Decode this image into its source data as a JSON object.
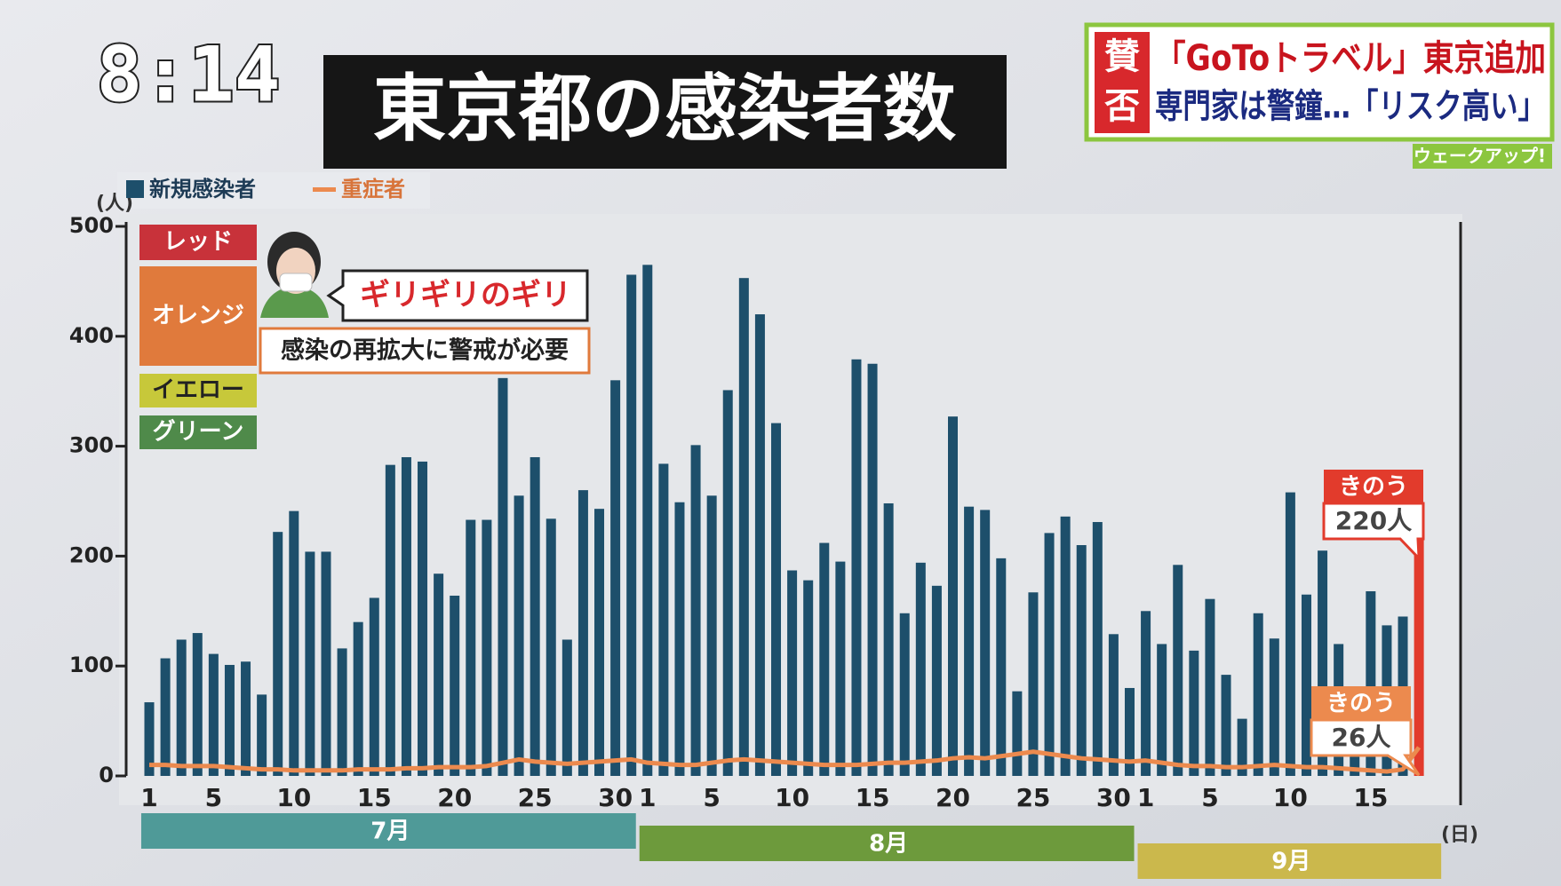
{
  "header": {
    "clock": "8:14",
    "title": "東京都の感染者数",
    "ticker": {
      "badge": [
        "賛",
        "否"
      ],
      "line1": "「GoToトラベル」東京追加",
      "line2": "専門家は警鐘…「リスク高い」",
      "program": "ウェークアップ!"
    }
  },
  "chart_data": {
    "type": "bar",
    "y_unit": "(人)",
    "x_unit": "(日)",
    "months": [
      "7月",
      "8月",
      "9月"
    ],
    "levels": [
      "レッド",
      "オレンジ",
      "イエロー",
      "グリーン"
    ],
    "quote": "ギリギリのギリ",
    "note": "感染の再拡大に警戒が必要",
    "categories": [
      "1",
      null,
      null,
      null,
      "5",
      null,
      null,
      null,
      null,
      "10",
      null,
      null,
      null,
      null,
      "15",
      null,
      null,
      null,
      null,
      "20",
      null,
      null,
      null,
      null,
      "25",
      null,
      null,
      null,
      null,
      "30",
      null,
      "1",
      null,
      null,
      null,
      "5",
      null,
      null,
      null,
      null,
      "10",
      null,
      null,
      null,
      null,
      "15",
      null,
      null,
      null,
      null,
      "20",
      null,
      null,
      null,
      null,
      "25",
      null,
      null,
      null,
      null,
      "30",
      null,
      "1",
      null,
      null,
      null,
      "5",
      null,
      null,
      null,
      null,
      "10",
      null,
      null,
      null,
      null,
      "15",
      null,
      null,
      null
    ],
    "series": [
      {
        "name": "新規感染者",
        "color": "#1d4f6b",
        "highlight_color": "#e23b2c",
        "callout": "きのう",
        "values": [
          67,
          107,
          124,
          130,
          111,
          101,
          104,
          74,
          222,
          241,
          204,
          204,
          116,
          140,
          162,
          283,
          290,
          286,
          184,
          164,
          233,
          233,
          362,
          255,
          290,
          234,
          124,
          260,
          243,
          360,
          456,
          465,
          284,
          249,
          301,
          255,
          351,
          453,
          420,
          321,
          187,
          178,
          212,
          195,
          379,
          375,
          248,
          148,
          194,
          173,
          327,
          245,
          242,
          198,
          77,
          167,
          221,
          236,
          210,
          231,
          129,
          80,
          150,
          120,
          192,
          114,
          161,
          92,
          52,
          148,
          125,
          258,
          165,
          205,
          120,
          75,
          168,
          137,
          145,
          220
        ],
        "value_labels": [
          null,
          null,
          null,
          null,
          null,
          null,
          null,
          null,
          null,
          null,
          null,
          null,
          null,
          null,
          null,
          null,
          null,
          null,
          null,
          null,
          null,
          null,
          null,
          null,
          null,
          null,
          null,
          null,
          null,
          null,
          null,
          null,
          null,
          null,
          null,
          null,
          null,
          null,
          null,
          null,
          null,
          null,
          null,
          null,
          null,
          null,
          null,
          null,
          null,
          null,
          null,
          null,
          null,
          null,
          null,
          null,
          null,
          null,
          null,
          null,
          null,
          null,
          null,
          null,
          null,
          null,
          null,
          null,
          null,
          null,
          null,
          null,
          null,
          null,
          null,
          null,
          null,
          null,
          null,
          "220人"
        ]
      },
      {
        "name": "重症者",
        "type": "line",
        "color": "#ec8a4e",
        "callout": "きのう",
        "values": [
          10,
          10,
          9,
          9,
          9,
          8,
          7,
          6,
          6,
          5,
          5,
          5,
          5,
          6,
          6,
          6,
          7,
          7,
          8,
          8,
          8,
          9,
          12,
          15,
          13,
          12,
          11,
          12,
          13,
          14,
          15,
          12,
          11,
          10,
          10,
          12,
          14,
          15,
          14,
          13,
          12,
          11,
          10,
          10,
          10,
          11,
          12,
          12,
          13,
          14,
          16,
          17,
          16,
          18,
          20,
          22,
          20,
          18,
          16,
          15,
          14,
          13,
          14,
          12,
          10,
          9,
          9,
          8,
          8,
          9,
          10,
          9,
          8,
          8,
          7,
          6,
          5,
          4,
          6,
          26
        ],
        "value_labels": [
          null,
          null,
          null,
          null,
          null,
          null,
          null,
          null,
          null,
          null,
          null,
          null,
          null,
          null,
          null,
          null,
          null,
          null,
          null,
          null,
          null,
          null,
          null,
          null,
          null,
          null,
          null,
          null,
          null,
          null,
          null,
          null,
          null,
          null,
          null,
          null,
          null,
          null,
          null,
          null,
          null,
          null,
          null,
          null,
          null,
          null,
          null,
          null,
          null,
          null,
          null,
          null,
          null,
          null,
          null,
          null,
          null,
          null,
          null,
          null,
          null,
          null,
          null,
          null,
          null,
          null,
          null,
          null,
          null,
          null,
          null,
          null,
          null,
          null,
          null,
          null,
          null,
          null,
          null,
          "26人"
        ]
      }
    ],
    "ylim": [
      0,
      500
    ],
    "yticks": [
      0,
      100,
      200,
      300,
      400,
      500
    ],
    "grid": false
  }
}
